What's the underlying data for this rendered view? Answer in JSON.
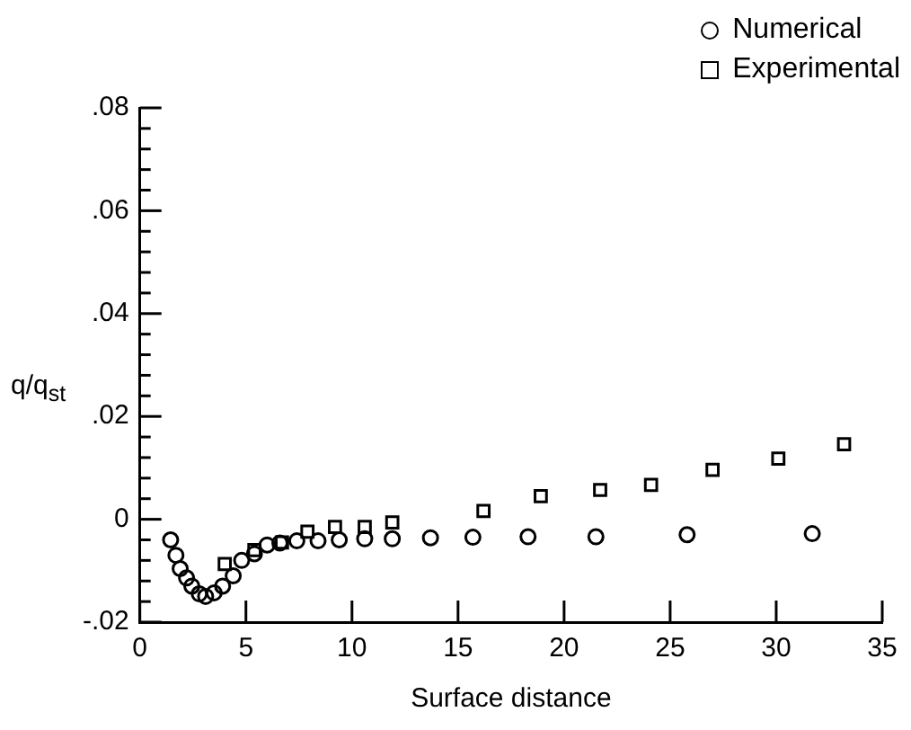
{
  "chart_data": {
    "type": "scatter",
    "xlabel": "Surface distance",
    "ylabel": "q/q$_{st}$",
    "legend": "top right",
    "xlim": [
      0,
      35
    ],
    "xticks": [
      0,
      5,
      10,
      15,
      20,
      25,
      30,
      35
    ],
    "ylim": [
      -0.02,
      0.08
    ],
    "yticks": [
      {
        "value": -0.02,
        "label": "-.02"
      },
      {
        "value": -0.016,
        "label": null
      },
      {
        "value": -0.012,
        "label": null
      },
      {
        "value": -0.008,
        "label": null
      },
      {
        "value": -0.004,
        "label": null
      },
      0,
      {
        "value": 0.004,
        "label": null
      },
      {
        "value": 0.008,
        "label": null
      },
      {
        "value": 0.012,
        "label": null
      },
      {
        "value": 0.016,
        "label": null
      },
      {
        "value": 0.02,
        "label": ".02"
      },
      {
        "value": 0.024,
        "label": null
      },
      {
        "value": 0.028,
        "label": null
      },
      {
        "value": 0.032,
        "label": null
      },
      {
        "value": 0.036,
        "label": null
      },
      {
        "value": 0.04,
        "label": ".04"
      },
      {
        "value": 0.044,
        "label": null
      },
      {
        "value": 0.048,
        "label": null
      },
      {
        "value": 0.052,
        "label": null
      },
      {
        "value": 0.056,
        "label": null
      },
      {
        "value": 0.06,
        "label": ".06"
      },
      {
        "value": 0.064,
        "label": null
      },
      {
        "value": 0.068,
        "label": null
      },
      {
        "value": 0.072,
        "label": null
      },
      {
        "value": 0.076,
        "label": null
      },
      {
        "value": 0.08,
        "label": ".08"
      }
    ],
    "grid": false,
    "series": [
      {
        "name": "Numerical",
        "color": "#000000",
        "marker": "circle",
        "x": [
          1.45,
          1.7,
          1.9,
          2.2,
          2.45,
          2.8,
          3.1,
          3.5,
          3.9,
          4.4,
          4.8,
          5.4,
          6.0,
          6.6,
          7.4,
          8.4,
          9.4,
          10.6,
          11.9,
          13.7,
          15.7,
          18.3,
          21.5,
          25.8,
          31.7
        ],
        "values": [
          -0.004,
          -0.007,
          -0.0096,
          -0.0114,
          -0.013,
          -0.0145,
          -0.015,
          -0.0143,
          -0.013,
          -0.011,
          -0.008,
          -0.0067,
          -0.005,
          -0.0046,
          -0.0042,
          -0.0042,
          -0.004,
          -0.0038,
          -0.0038,
          -0.0036,
          -0.0035,
          -0.0034,
          -0.0034,
          -0.003,
          -0.0028
        ]
      },
      {
        "name": "Experimental",
        "color": "#000000",
        "marker": "square",
        "x": [
          4.0,
          5.4,
          6.7,
          7.9,
          9.2,
          10.6,
          11.9,
          16.2,
          18.9,
          21.7,
          24.1,
          27.0,
          30.1,
          33.2
        ],
        "values": [
          -0.0087,
          -0.006,
          -0.0045,
          -0.0024,
          -0.0015,
          -0.0015,
          -0.0006,
          0.0016,
          0.0045,
          0.0057,
          0.0067,
          0.0096,
          0.0118,
          0.0146
        ]
      }
    ]
  }
}
